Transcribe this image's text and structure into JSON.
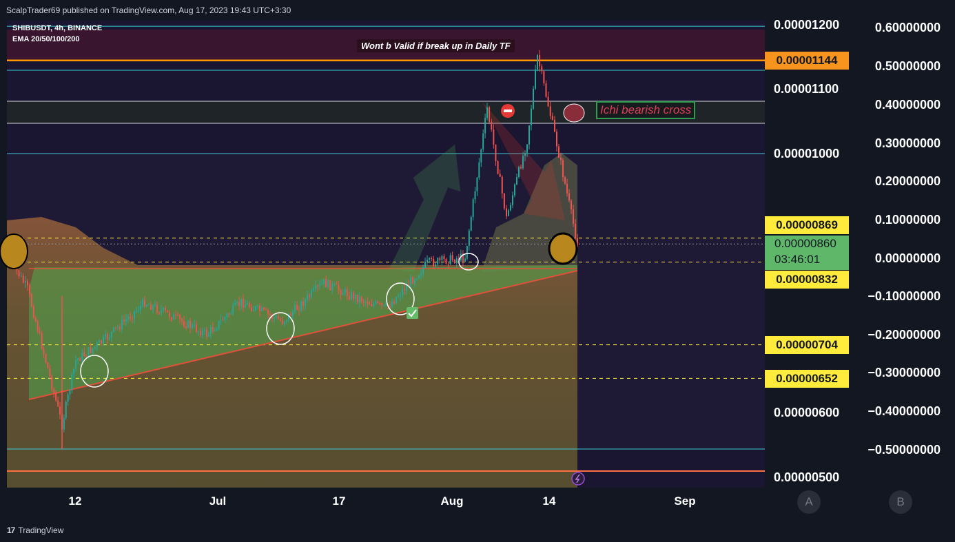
{
  "header": {
    "published_text": "ScalpTrader69 published on TradingView.com, Aug 17, 2023 19:43 UTC+3:30"
  },
  "legend": {
    "symbol_line": "SHIBUSDT, 4h, BINANCE",
    "indicator_line": "EMA 20/50/100/200"
  },
  "annotations": {
    "warning": "Wont b Valid if break up in Daily TF",
    "ichi": "Ichi bearish cross"
  },
  "price_axis": {
    "labels": [
      "0.00001200",
      "0.00001100",
      "0.00001000",
      "0.00000600",
      "0.00000500"
    ],
    "tags": [
      {
        "value": "0.00001144",
        "color": "#f7941d"
      },
      {
        "value": "0.00000869",
        "color": "#ffeb3b"
      },
      {
        "value": "0.00000832",
        "color": "#ffeb3b"
      },
      {
        "value": "0.00000704",
        "color": "#ffeb3b"
      },
      {
        "value": "0.00000652",
        "color": "#ffeb3b"
      }
    ],
    "current": {
      "value": "0.00000860",
      "countdown": "03:46:01",
      "color": "#5fb86a"
    }
  },
  "second_axis": {
    "labels": [
      "0.60000000",
      "0.50000000",
      "0.40000000",
      "0.30000000",
      "0.20000000",
      "0.10000000",
      "0.00000000",
      "−0.10000000",
      "−0.20000000",
      "−0.30000000",
      "−0.40000000",
      "−0.50000000"
    ]
  },
  "time_axis": {
    "labels": [
      "12",
      "Jul",
      "17",
      "Aug",
      "14",
      "Sep"
    ]
  },
  "axis_buttons": {
    "a": "A",
    "b": "B"
  },
  "footer": {
    "brand": "TradingView"
  },
  "colors": {
    "background": "#131722",
    "up": "#26a69a",
    "down": "#ef5350",
    "ema_zone": "#8a7a3a",
    "bull_zone": "#4caf50",
    "resistance": "#ff9800",
    "support": "#ffeb3b"
  },
  "chart_data": {
    "type": "candlestick",
    "symbol": "SHIBUSDT",
    "timeframe": "4h",
    "exchange": "BINANCE",
    "x_ticks": [
      "12",
      "Jul",
      "17",
      "Aug",
      "14",
      "Sep"
    ],
    "ylim": [
      5e-06,
      1.2e-05
    ],
    "horizontal_levels": [
      1.144e-05,
      8.69e-06,
      8.32e-06,
      7.04e-06,
      6.52e-06
    ],
    "current_price": 8.6e-06,
    "price_path": [
      {
        "x": "Jun 08",
        "close": 8.4e-06
      },
      {
        "x": "Jun 10",
        "close": 7.9e-06
      },
      {
        "x": "Jun 10",
        "close": 5.8e-06
      },
      {
        "x": "Jun 12",
        "close": 6.8e-06
      },
      {
        "x": "Jun 16",
        "close": 7.1e-06
      },
      {
        "x": "Jun 21",
        "close": 7.7e-06
      },
      {
        "x": "Jun 30",
        "close": 7.2e-06
      },
      {
        "x": "Jul 06",
        "close": 7.7e-06
      },
      {
        "x": "Jul 12",
        "close": 7.4e-06
      },
      {
        "x": "Jul 15",
        "close": 8e-06
      },
      {
        "x": "Jul 20",
        "close": 7.8e-06
      },
      {
        "x": "Jul 25",
        "close": 7.6e-06
      },
      {
        "x": "Jul 30",
        "close": 8.3e-06
      },
      {
        "x": "Aug 04",
        "close": 8.4e-06
      },
      {
        "x": "Aug 06",
        "close": 1.07e-05
      },
      {
        "x": "Aug 08",
        "close": 9e-06
      },
      {
        "x": "Aug 11",
        "close": 1.02e-05
      },
      {
        "x": "Aug 13",
        "close": 1.15e-05
      },
      {
        "x": "Aug 15",
        "close": 1.03e-05
      },
      {
        "x": "Aug 17",
        "close": 8.6e-06
      }
    ]
  }
}
